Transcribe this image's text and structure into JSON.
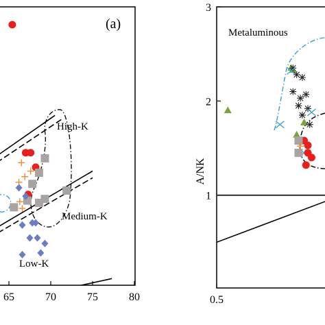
{
  "chart_data": [
    {
      "type": "scatter",
      "panel_label": "(a)",
      "xlim": [
        60,
        80
      ],
      "ylim": [
        0,
        5
      ],
      "x_tick_labels": [
        "65",
        "70",
        "75",
        "80"
      ],
      "x_ticks": [
        65,
        70,
        75,
        80
      ],
      "region_labels": [
        "High-K",
        "Medium-K",
        "Low-K"
      ],
      "boundaries": [
        {
          "name": "upper-solid",
          "points": [
            [
              60,
              1.95
            ],
            [
              70.5,
              3.05
            ]
          ]
        },
        {
          "name": "upper-dashed",
          "points": [
            [
              60,
              1.85
            ],
            [
              71.5,
              3.0
            ]
          ]
        },
        {
          "name": "middle-solid",
          "points": [
            [
              60,
              0.72
            ],
            [
              75,
              2.05
            ]
          ]
        },
        {
          "name": "middle-dashed",
          "points": [
            [
              60,
              0.62
            ],
            [
              75,
              1.93
            ]
          ]
        },
        {
          "name": "lower-solid",
          "points": [
            [
              60,
              -0.45
            ],
            [
              77.3,
              0.12
            ]
          ]
        },
        {
          "name": "lower-dashed",
          "points": [
            [
              60,
              -0.5
            ],
            [
              76.5,
              0.0
            ]
          ]
        }
      ],
      "series": [
        {
          "marker": "circle",
          "color": "#e8201c",
          "points": [
            [
              65.4,
              4.68
            ],
            [
              67.0,
              2.38
            ],
            [
              67.6,
              2.38
            ],
            [
              68.2,
              2.12
            ],
            [
              67.3,
              1.63
            ]
          ]
        },
        {
          "marker": "square",
          "color": "#a8a4a4",
          "points": [
            [
              69.3,
              2.28
            ],
            [
              68.6,
              2.02
            ],
            [
              67.8,
              1.82
            ],
            [
              68.6,
              1.48
            ],
            [
              69.3,
              1.55
            ],
            [
              67.2,
              1.52
            ],
            [
              71.9,
              1.7
            ],
            [
              65.6,
              1.4
            ]
          ]
        },
        {
          "marker": "cross",
          "color": "#f08a2c",
          "points": [
            [
              66.5,
              2.2
            ],
            [
              67.6,
              2.05
            ],
            [
              66.9,
              1.95
            ],
            [
              66.2,
              1.85
            ],
            [
              66.3,
              1.5
            ],
            [
              66.6,
              1.38
            ]
          ]
        },
        {
          "marker": "diamond",
          "color": "#6b7fc0",
          "points": [
            [
              66.2,
              1.75
            ],
            [
              67.0,
              1.6
            ],
            [
              67.8,
              1.12
            ],
            [
              68.2,
              1.12
            ],
            [
              66.6,
              1.08
            ],
            [
              67.5,
              0.85
            ],
            [
              68.4,
              0.85
            ],
            [
              69.3,
              0.75
            ],
            [
              68.8,
              0.58
            ],
            [
              66.6,
              0.55
            ]
          ]
        }
      ]
    },
    {
      "type": "scatter",
      "ylabel": "A/NK",
      "xlim": [
        0.5,
        1.2
      ],
      "ylim": [
        0,
        3
      ],
      "x_tick_labels": [
        "0.5"
      ],
      "x_ticks": [
        0.5
      ],
      "y_tick_labels": [
        "1",
        "2",
        "3"
      ],
      "y_ticks": [
        1,
        2,
        3
      ],
      "region_labels": [
        "Metaluminous"
      ],
      "boundaries": [
        {
          "name": "horizontal",
          "points": [
            [
              0.5,
              1.0
            ],
            [
              1.2,
              1.0
            ]
          ]
        },
        {
          "name": "diagonal",
          "points": [
            [
              0.5,
              0.5
            ],
            [
              1.2,
              1.02
            ]
          ]
        }
      ],
      "series": [
        {
          "marker": "triangle",
          "color": "#7aa33c",
          "points": [
            [
              0.56,
              1.9
            ],
            [
              0.9,
              2.35
            ],
            [
              0.91,
              2.33
            ],
            [
              0.93,
              1.64
            ],
            [
              0.97,
              1.77
            ]
          ]
        },
        {
          "marker": "star",
          "color": "#222222",
          "points": [
            [
              0.91,
              2.35
            ],
            [
              0.93,
              2.28
            ],
            [
              0.96,
              2.25
            ],
            [
              0.91,
              2.1
            ],
            [
              0.95,
              2.03
            ],
            [
              0.98,
              2.07
            ],
            [
              0.94,
              1.95
            ],
            [
              0.99,
              1.92
            ],
            [
              0.96,
              1.85
            ],
            [
              1.0,
              1.75
            ]
          ]
        },
        {
          "marker": "x",
          "color": "#3a9ed0",
          "points": [
            [
              0.84,
              1.75
            ],
            [
              0.97,
              1.45
            ],
            [
              1.01,
              1.88
            ],
            [
              0.9,
              2.32
            ]
          ]
        },
        {
          "marker": "circle",
          "color": "#e8201c",
          "points": [
            [
              0.97,
              1.58
            ],
            [
              0.99,
              1.53
            ],
            [
              0.99,
              1.45
            ],
            [
              0.98,
              1.32
            ],
            [
              1.01,
              1.4
            ]
          ]
        },
        {
          "marker": "square",
          "color": "#a8a4a4",
          "points": [
            [
              0.94,
              1.58
            ],
            [
              0.94,
              1.45
            ]
          ]
        },
        {
          "marker": "cross",
          "color": "#f08a2c",
          "points": [
            [
              0.95,
              1.52
            ]
          ]
        }
      ]
    }
  ]
}
